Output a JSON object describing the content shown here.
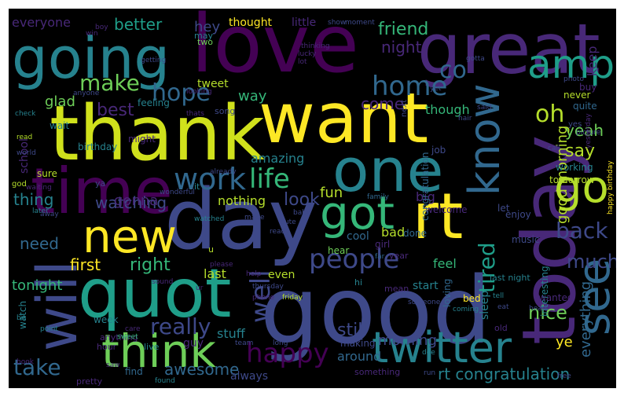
{
  "image": {
    "kind": "word-cloud",
    "background": "#000000",
    "palette": "viridis",
    "palette_colors": [
      "#440154",
      "#482878",
      "#3e4989",
      "#31688e",
      "#26828e",
      "#1f9e89",
      "#35b779",
      "#6ece58",
      "#b5de2b",
      "#fde725"
    ]
  },
  "words": [
    {
      "text": "good",
      "weight": 1.0,
      "color": "#3e4989"
    },
    {
      "text": "thank",
      "weight": 0.93,
      "color": "#d0e11c"
    },
    {
      "text": "love",
      "weight": 0.88,
      "color": "#440154"
    },
    {
      "text": "day",
      "weight": 0.87,
      "color": "#3e4989"
    },
    {
      "text": "want",
      "weight": 0.84,
      "color": "#fde725"
    },
    {
      "text": "great",
      "weight": 0.8,
      "color": "#482878"
    },
    {
      "text": "today",
      "weight": 0.78,
      "color": "#482878"
    },
    {
      "text": "time",
      "weight": 0.76,
      "color": "#440154"
    },
    {
      "text": "quot",
      "weight": 0.73,
      "color": "#1f9e89"
    },
    {
      "text": "going",
      "weight": 0.7,
      "color": "#26828e"
    },
    {
      "text": "one",
      "weight": 0.68,
      "color": "#26828e"
    },
    {
      "text": "rt",
      "weight": 0.66,
      "color": "#fde725"
    },
    {
      "text": "will",
      "weight": 0.64,
      "color": "#3e4989"
    },
    {
      "text": "think",
      "weight": 0.58,
      "color": "#6ece58"
    },
    {
      "text": "twitter",
      "weight": 0.55,
      "color": "#26828e"
    },
    {
      "text": "got",
      "weight": 0.54,
      "color": "#35b779"
    },
    {
      "text": "new",
      "weight": 0.53,
      "color": "#fde725"
    },
    {
      "text": "see",
      "weight": 0.5,
      "color": "#31688e"
    },
    {
      "text": "know",
      "weight": 0.5,
      "color": "#31688e"
    },
    {
      "text": "go",
      "weight": 0.46,
      "color": "#b5de2b"
    },
    {
      "text": "amp",
      "weight": 0.44,
      "color": "#1f9e89"
    },
    {
      "text": "work",
      "weight": 0.4,
      "color": "#31688e"
    },
    {
      "text": "people",
      "weight": 0.38,
      "color": "#3e4989"
    },
    {
      "text": "life",
      "weight": 0.37,
      "color": "#35b779"
    },
    {
      "text": "well",
      "weight": 0.37,
      "color": "#3e4989"
    },
    {
      "text": "back",
      "weight": 0.36,
      "color": "#3e4989"
    },
    {
      "text": "happy",
      "weight": 0.34,
      "color": "#440154"
    },
    {
      "text": "home",
      "weight": 0.33,
      "color": "#31688e"
    },
    {
      "text": "hope",
      "weight": 0.33,
      "color": "#31688e"
    },
    {
      "text": "tired",
      "weight": 0.3,
      "color": "#1f9e89"
    },
    {
      "text": "make",
      "weight": 0.3,
      "color": "#6ece58"
    },
    {
      "text": "oh",
      "weight": 0.3,
      "color": "#b5de2b"
    },
    {
      "text": "take",
      "weight": 0.28,
      "color": "#31688e"
    },
    {
      "text": "really",
      "weight": 0.27,
      "color": "#3e4989"
    },
    {
      "text": "co",
      "weight": 0.26,
      "color": "#31688e"
    },
    {
      "text": "much",
      "weight": 0.25,
      "color": "#3e4989"
    },
    {
      "text": "right",
      "weight": 0.22,
      "color": "#35b779"
    },
    {
      "text": "friend",
      "weight": 0.22,
      "color": "#35b779"
    },
    {
      "text": "still",
      "weight": 0.22,
      "color": "#3e4989"
    },
    {
      "text": "nice",
      "weight": 0.22,
      "color": "#6ece58"
    },
    {
      "text": "look",
      "weight": 0.22,
      "color": "#3e4989"
    },
    {
      "text": "say",
      "weight": 0.21,
      "color": "#b5de2b"
    },
    {
      "text": "best",
      "weight": 0.21,
      "color": "#482878"
    },
    {
      "text": "awesome",
      "weight": 0.2,
      "color": "#31688e"
    },
    {
      "text": "everything",
      "weight": 0.2,
      "color": "#31688e"
    },
    {
      "text": "first",
      "weight": 0.2,
      "color": "#fde725"
    },
    {
      "text": "yeah",
      "weight": 0.2,
      "color": "#6ece58"
    },
    {
      "text": "rt congratulation",
      "weight": 0.2,
      "color": "#26828e"
    },
    {
      "text": "good morning",
      "weight": 0.2,
      "color": "#b5de2b"
    },
    {
      "text": "thing",
      "weight": 0.19,
      "color": "#26828e"
    },
    {
      "text": "watching",
      "weight": 0.19,
      "color": "#3e4989"
    },
    {
      "text": "better",
      "weight": 0.18,
      "color": "#1f9e89"
    },
    {
      "text": "need",
      "weight": 0.18,
      "color": "#31688e"
    },
    {
      "text": "night",
      "weight": 0.18,
      "color": "#482878"
    },
    {
      "text": "come",
      "weight": 0.18,
      "color": "#482878"
    },
    {
      "text": "gonna",
      "weight": 0.17,
      "color": "#482878"
    },
    {
      "text": "way",
      "weight": 0.17,
      "color": "#35b779"
    },
    {
      "text": "glad",
      "weight": 0.17,
      "color": "#6ece58"
    },
    {
      "text": "morning",
      "weight": 0.17,
      "color": "#3e4989"
    },
    {
      "text": "everyone",
      "weight": 0.16,
      "color": "#482878"
    },
    {
      "text": "fun",
      "weight": 0.16,
      "color": "#b5de2b"
    },
    {
      "text": "ye",
      "weight": 0.16,
      "color": "#fde725"
    },
    {
      "text": "tonight",
      "weight": 0.15,
      "color": "#35b779"
    },
    {
      "text": "nothing",
      "weight": 0.15,
      "color": "#b5de2b"
    },
    {
      "text": "hey",
      "weight": 0.15,
      "color": "#3e4989"
    },
    {
      "text": "stuff",
      "weight": 0.15,
      "color": "#26828e"
    },
    {
      "text": "around",
      "weight": 0.15,
      "color": "#31688e"
    },
    {
      "text": "amazing",
      "weight": 0.14,
      "color": "#26828e"
    },
    {
      "text": "feel",
      "weight": 0.14,
      "color": "#35b779"
    },
    {
      "text": "bad",
      "weight": 0.14,
      "color": "#b5de2b"
    },
    {
      "text": "though",
      "weight": 0.14,
      "color": "#35b779"
    },
    {
      "text": "always",
      "weight": 0.13,
      "color": "#3e4989"
    },
    {
      "text": "cool",
      "weight": 0.13,
      "color": "#31688e"
    },
    {
      "text": "big",
      "weight": 0.13,
      "color": "#482878"
    },
    {
      "text": "keep",
      "weight": 0.13,
      "color": "#482878"
    },
    {
      "text": "last",
      "weight": 0.13,
      "color": "#b5de2b"
    },
    {
      "text": "even",
      "weight": 0.12,
      "color": "#b5de2b"
    },
    {
      "text": "thought",
      "weight": 0.11,
      "color": "#fde725"
    },
    {
      "text": "little",
      "weight": 0.11,
      "color": "#482878"
    },
    {
      "text": "tweet",
      "weight": 0.12,
      "color": "#b5de2b"
    },
    {
      "text": "school",
      "weight": 0.12,
      "color": "#482878"
    },
    {
      "text": "sleep",
      "weight": 0.12,
      "color": "#26828e"
    },
    {
      "text": "start",
      "weight": 0.12,
      "color": "#26828e"
    },
    {
      "text": "bed",
      "weight": 0.1,
      "color": "#fde725"
    },
    {
      "text": "feeling",
      "weight": 0.1,
      "color": "#26828e"
    },
    {
      "text": "week",
      "weight": 0.1,
      "color": "#26828e"
    },
    {
      "text": "guy",
      "weight": 0.1,
      "color": "#482878"
    },
    {
      "text": "hear",
      "weight": 0.1,
      "color": "#6ece58"
    },
    {
      "text": "girl",
      "weight": 0.1,
      "color": "#482878"
    },
    {
      "text": "done",
      "weight": 0.1,
      "color": "#31688e"
    },
    {
      "text": "welcome",
      "weight": 0.1,
      "color": "#482878"
    },
    {
      "text": "let",
      "weight": 0.1,
      "color": "#3e4989"
    },
    {
      "text": "enjoy",
      "weight": 0.1,
      "color": "#3e4989"
    },
    {
      "text": "music",
      "weight": 0.1,
      "color": "#3e4989"
    },
    {
      "text": "wait",
      "weight": 0.1,
      "color": "#26828e"
    },
    {
      "text": "job",
      "weight": 0.1,
      "color": "#3e4989"
    },
    {
      "text": "loving",
      "weight": 0.1,
      "color": "#31688e"
    },
    {
      "text": "interesting",
      "weight": 0.1,
      "color": "#26828e"
    },
    {
      "text": "congratulation",
      "weight": 0.1,
      "color": "#31688e"
    },
    {
      "text": "working",
      "weight": 0.1,
      "color": "#26828e"
    },
    {
      "text": "tomorrow",
      "weight": 0.1,
      "color": "#b5de2b"
    },
    {
      "text": "never",
      "weight": 0.1,
      "color": "#b5de2b"
    },
    {
      "text": "quite",
      "weight": 0.1,
      "color": "#31688e"
    },
    {
      "text": "wanted",
      "weight": 0.1,
      "color": "#482878"
    },
    {
      "text": "making",
      "weight": 0.1,
      "color": "#3e4989"
    },
    {
      "text": "something",
      "weight": 0.08,
      "color": "#482878"
    },
    {
      "text": "birthday",
      "weight": 0.08,
      "color": "#26828e"
    },
    {
      "text": "might",
      "weight": 0.09,
      "color": "#482878"
    },
    {
      "text": "sure",
      "weight": 0.09,
      "color": "#b5de2b"
    },
    {
      "text": "find",
      "weight": 0.09,
      "color": "#31688e"
    },
    {
      "text": "watch",
      "weight": 0.09,
      "color": "#26828e"
    },
    {
      "text": "buy",
      "weight": 0.09,
      "color": "#482878"
    },
    {
      "text": "yes",
      "weight": 0.09,
      "color": "#3e4989"
    },
    {
      "text": "ya",
      "weight": 0.08,
      "color": "#3e4989"
    },
    {
      "text": "two",
      "weight": 0.08,
      "color": "#6ece58"
    },
    {
      "text": "may",
      "weight": 0.08,
      "color": "#26828e"
    },
    {
      "text": "hi",
      "weight": 0.08,
      "color": "#26828e"
    },
    {
      "text": "u",
      "weight": 0.08,
      "color": "#b5de2b"
    },
    {
      "text": "it",
      "weight": 0.08,
      "color": "#26828e"
    },
    {
      "text": "year",
      "weight": 0.07,
      "color": "#482878"
    },
    {
      "text": "old",
      "weight": 0.07,
      "color": "#482878"
    },
    {
      "text": "anything",
      "weight": 0.07,
      "color": "#482878"
    },
    {
      "text": "pretty",
      "weight": 0.07,
      "color": "#482878"
    },
    {
      "text": "hour",
      "weight": 0.07,
      "color": "#482878"
    },
    {
      "text": "live",
      "weight": 0.07,
      "color": "#26828e"
    },
    {
      "text": "mean",
      "weight": 0.07,
      "color": "#482878"
    },
    {
      "text": "last night",
      "weight": 0.07,
      "color": "#26828e"
    },
    {
      "text": "happy birthday",
      "weight": 0.05,
      "color": "#fde725"
    },
    {
      "text": "song",
      "weight": 0.07,
      "color": "#3e4989"
    },
    {
      "text": "next",
      "weight": 0.06,
      "color": "#3e4989"
    },
    {
      "text": "god",
      "weight": 0.06,
      "color": "#b5de2b"
    },
    {
      "text": "read",
      "weight": 0.05,
      "color": "#b5de2b"
    },
    {
      "text": "world",
      "weight": 0.05,
      "color": "#3e4989"
    },
    {
      "text": "family",
      "weight": 0.05,
      "color": "#31688e"
    },
    {
      "text": "help",
      "weight": 0.05,
      "color": "#482878"
    },
    {
      "text": "sound",
      "weight": 0.05,
      "color": "#482878"
    },
    {
      "text": "friday",
      "weight": 0.05,
      "color": "#b5de2b"
    },
    {
      "text": "waiting",
      "weight": 0.05,
      "color": "#482878"
    },
    {
      "text": "later",
      "weight": 0.05,
      "color": "#26828e"
    },
    {
      "text": "watched",
      "weight": 0.05,
      "color": "#26828e"
    },
    {
      "text": "sweet",
      "weight": 0.05,
      "color": "#35b779"
    },
    {
      "text": "thats",
      "weight": 0.05,
      "color": "#482878"
    },
    {
      "text": "check",
      "weight": 0.05,
      "color": "#26828e"
    },
    {
      "text": "looking",
      "weight": 0.05,
      "color": "#482878"
    },
    {
      "text": "wonderful",
      "weight": 0.05,
      "color": "#3e4989"
    },
    {
      "text": "please",
      "weight": 0.05,
      "color": "#482878"
    },
    {
      "text": "lucky",
      "weight": 0.05,
      "color": "#482878"
    },
    {
      "text": "lot",
      "weight": 0.05,
      "color": "#482878"
    },
    {
      "text": "thinking",
      "weight": 0.05,
      "color": "#482878"
    },
    {
      "text": "show",
      "weight": 0.05,
      "color": "#3e4989"
    },
    {
      "text": "moment",
      "weight": 0.05,
      "color": "#3e4989"
    },
    {
      "text": "point",
      "weight": 0.05,
      "color": "#26828e"
    },
    {
      "text": "bit",
      "weight": 0.05,
      "color": "#26828e"
    },
    {
      "text": "book",
      "weight": 0.05,
      "color": "#482878"
    },
    {
      "text": "saw",
      "weight": 0.05,
      "color": "#482878"
    },
    {
      "text": "found",
      "weight": 0.05,
      "color": "#26828e"
    },
    {
      "text": "care",
      "weight": 0.05,
      "color": "#482878"
    },
    {
      "text": "run",
      "weight": 0.05,
      "color": "#3e4989"
    },
    {
      "text": "team",
      "weight": 0.05,
      "color": "#3e4989"
    },
    {
      "text": "doe",
      "weight": 0.05,
      "color": "#26828e"
    },
    {
      "text": "free",
      "weight": 0.05,
      "color": "#3e4989"
    },
    {
      "text": "someone",
      "weight": 0.05,
      "color": "#3e4989"
    },
    {
      "text": "tell",
      "weight": 0.05,
      "color": "#26828e"
    },
    {
      "text": "eat",
      "weight": 0.05,
      "color": "#3e4989"
    },
    {
      "text": "head",
      "weight": 0.05,
      "color": "#3e4989"
    },
    {
      "text": "coming",
      "weight": 0.05,
      "color": "#26828e"
    },
    {
      "text": "baby",
      "weight": 0.05,
      "color": "#3e4989"
    },
    {
      "text": "win",
      "weight": 0.05,
      "color": "#482878"
    },
    {
      "text": "boy",
      "weight": 0.05,
      "color": "#482878"
    },
    {
      "text": "photo",
      "weight": 0.05,
      "color": "#3e4989"
    },
    {
      "text": "picture",
      "weight": 0.05,
      "color": "#3e4989"
    },
    {
      "text": "yesterday",
      "weight": 0.05,
      "color": "#482878"
    },
    {
      "text": "call",
      "weight": 0.05,
      "color": "#3e4989"
    },
    {
      "text": "far",
      "weight": 0.05,
      "color": "#31688e"
    },
    {
      "text": "ur",
      "weight": 0.05,
      "color": "#482878"
    },
    {
      "text": "phone",
      "weight": 0.05,
      "color": "#482878"
    },
    {
      "text": "cute",
      "weight": 0.05,
      "color": "#3e4989"
    },
    {
      "text": "ready",
      "weight": 0.05,
      "color": "#3e4989"
    },
    {
      "text": "made",
      "weight": 0.05,
      "color": "#3e4989"
    },
    {
      "text": "already",
      "weight": 0.05,
      "color": "#3e4989"
    },
    {
      "text": "getting",
      "weight": 0.05,
      "color": "#3e4989"
    },
    {
      "text": "anyone",
      "weight": 0.05,
      "color": "#3e4989"
    },
    {
      "text": "yet",
      "weight": 0.05,
      "color": "#3e4989"
    },
    {
      "text": "hair",
      "weight": 0.05,
      "color": "#3e4989"
    },
    {
      "text": "said",
      "weight": 0.05,
      "color": "#3e4989"
    },
    {
      "text": "thursday",
      "weight": 0.05,
      "color": "#3e4989"
    },
    {
      "text": "long",
      "weight": 0.05,
      "color": "#3e4989"
    },
    {
      "text": "gotta",
      "weight": 0.05,
      "color": "#3e4989"
    },
    {
      "text": "away",
      "weight": 0.05,
      "color": "#3e4989"
    }
  ]
}
